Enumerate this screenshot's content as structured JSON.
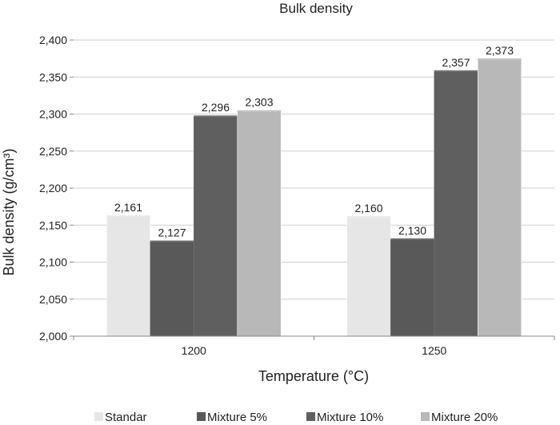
{
  "chart_data": {
    "type": "bar",
    "title": "Bulk density",
    "xlabel": "Temperature (°C)",
    "ylabel": "Bulk density (g/cm³)",
    "categories": [
      "1200",
      "1250"
    ],
    "ylim": [
      2.0,
      2.4
    ],
    "yticks": [
      "2,000",
      "2,050",
      "2,100",
      "2,150",
      "2,200",
      "2,250",
      "2,300",
      "2,350",
      "2,400"
    ],
    "ytick_values": [
      2.0,
      2.05,
      2.1,
      2.15,
      2.2,
      2.25,
      2.3,
      2.35,
      2.4
    ],
    "grid": true,
    "legend_position": "bottom",
    "series": [
      {
        "name": "Standar",
        "color": "#e6e6e6",
        "values": [
          2.161,
          2.16
        ],
        "labels": [
          "2,161",
          "2,160"
        ]
      },
      {
        "name": "Mixture 5%",
        "color": "#595959",
        "values": [
          2.127,
          2.13
        ],
        "labels": [
          "2,127",
          "2,130"
        ]
      },
      {
        "name": "Mixture 10%",
        "color": "#5f5f5f",
        "values": [
          2.296,
          2.357
        ],
        "labels": [
          "2,296",
          "2,357"
        ]
      },
      {
        "name": "Mixture 20%",
        "color": "#b8b8b8",
        "values": [
          2.303,
          2.373
        ],
        "labels": [
          "2,303",
          "2,373"
        ]
      }
    ]
  }
}
